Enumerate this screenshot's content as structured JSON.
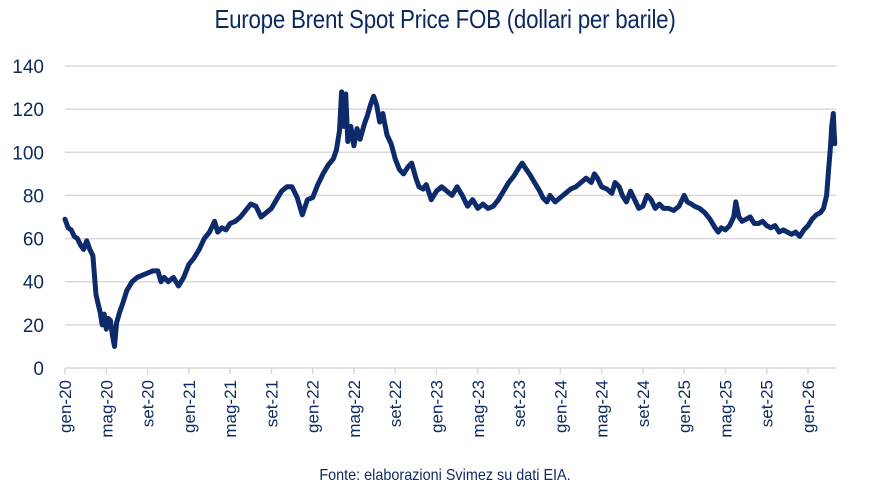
{
  "chart_data": {
    "type": "line",
    "title": "Europe Brent Spot Price FOB (dollari per barile)",
    "source": "Fonte: elaborazioni Svimez su dati EIA.",
    "xlabel": "",
    "ylabel": "",
    "ylim": [
      0,
      140
    ],
    "yticks": [
      0,
      20,
      40,
      60,
      80,
      100,
      120,
      140
    ],
    "grid": true,
    "legend": "none",
    "line_color": "#0d2a6b",
    "x_unit": "months since gen-20",
    "xlim": [
      0,
      75
    ],
    "xtick_positions": [
      0,
      4,
      8,
      12,
      16,
      20,
      24,
      28,
      32,
      36,
      40,
      44,
      48,
      52,
      56,
      60,
      64,
      68,
      72
    ],
    "xtick_labels": [
      "gen-20",
      "mag-20",
      "set-20",
      "gen-21",
      "mag-21",
      "set-21",
      "gen-22",
      "mag-22",
      "set-22",
      "gen-23",
      "mag-23",
      "set-23",
      "gen-24",
      "mag-24",
      "set-24",
      "gen-25",
      "mag-25",
      "set-25",
      "gen-26"
    ],
    "series": [
      {
        "name": "Europe Brent Spot Price FOB",
        "points": [
          [
            0,
            69
          ],
          [
            0.3,
            65
          ],
          [
            0.6,
            64
          ],
          [
            0.9,
            61
          ],
          [
            1.2,
            60
          ],
          [
            1.5,
            57
          ],
          [
            1.8,
            55
          ],
          [
            2.1,
            59
          ],
          [
            2.4,
            55
          ],
          [
            2.7,
            52
          ],
          [
            3.0,
            34
          ],
          [
            3.2,
            30
          ],
          [
            3.4,
            26
          ],
          [
            3.6,
            20
          ],
          [
            3.8,
            25
          ],
          [
            4.0,
            18
          ],
          [
            4.2,
            23
          ],
          [
            4.4,
            22
          ],
          [
            4.6,
            15
          ],
          [
            4.8,
            10
          ],
          [
            5.0,
            21
          ],
          [
            5.3,
            26
          ],
          [
            5.6,
            30
          ],
          [
            6.0,
            36
          ],
          [
            6.5,
            40
          ],
          [
            7.0,
            42
          ],
          [
            7.5,
            43
          ],
          [
            8.0,
            44
          ],
          [
            8.5,
            45
          ],
          [
            9.0,
            45
          ],
          [
            9.3,
            40
          ],
          [
            9.6,
            42
          ],
          [
            10.0,
            40
          ],
          [
            10.5,
            42
          ],
          [
            11.0,
            38
          ],
          [
            11.5,
            42
          ],
          [
            12.0,
            48
          ],
          [
            12.5,
            51
          ],
          [
            13.0,
            55
          ],
          [
            13.5,
            60
          ],
          [
            14.0,
            63
          ],
          [
            14.5,
            68
          ],
          [
            14.8,
            63
          ],
          [
            15.2,
            65
          ],
          [
            15.6,
            64
          ],
          [
            16.0,
            67
          ],
          [
            16.5,
            68
          ],
          [
            17.0,
            70
          ],
          [
            17.5,
            73
          ],
          [
            18.0,
            76
          ],
          [
            18.5,
            75
          ],
          [
            19.0,
            70
          ],
          [
            19.5,
            72
          ],
          [
            20.0,
            74
          ],
          [
            20.5,
            78
          ],
          [
            21.0,
            82
          ],
          [
            21.5,
            84
          ],
          [
            22.0,
            84
          ],
          [
            22.5,
            79
          ],
          [
            23.0,
            71
          ],
          [
            23.5,
            78
          ],
          [
            24.0,
            79
          ],
          [
            24.5,
            85
          ],
          [
            25.0,
            90
          ],
          [
            25.5,
            94
          ],
          [
            26.0,
            97
          ],
          [
            26.3,
            101
          ],
          [
            26.6,
            110
          ],
          [
            26.8,
            128
          ],
          [
            27.0,
            112
          ],
          [
            27.2,
            127
          ],
          [
            27.4,
            105
          ],
          [
            27.7,
            112
          ],
          [
            28.0,
            103
          ],
          [
            28.3,
            111
          ],
          [
            28.6,
            106
          ],
          [
            29.0,
            113
          ],
          [
            29.3,
            117
          ],
          [
            29.6,
            122
          ],
          [
            29.9,
            126
          ],
          [
            30.2,
            122
          ],
          [
            30.5,
            114
          ],
          [
            30.8,
            118
          ],
          [
            31.2,
            108
          ],
          [
            31.6,
            104
          ],
          [
            32.0,
            97
          ],
          [
            32.4,
            92
          ],
          [
            32.8,
            90
          ],
          [
            33.2,
            93
          ],
          [
            33.6,
            95
          ],
          [
            34.0,
            88
          ],
          [
            34.3,
            84
          ],
          [
            34.7,
            83
          ],
          [
            35.0,
            85
          ],
          [
            35.5,
            78
          ],
          [
            36.0,
            82
          ],
          [
            36.5,
            84
          ],
          [
            37.0,
            82
          ],
          [
            37.5,
            80
          ],
          [
            38.0,
            84
          ],
          [
            38.5,
            80
          ],
          [
            39.0,
            75
          ],
          [
            39.5,
            78
          ],
          [
            40.0,
            74
          ],
          [
            40.5,
            76
          ],
          [
            41.0,
            74
          ],
          [
            41.5,
            75
          ],
          [
            42.0,
            78
          ],
          [
            42.5,
            82
          ],
          [
            43.0,
            86
          ],
          [
            43.5,
            89
          ],
          [
            44.0,
            93
          ],
          [
            44.3,
            95
          ],
          [
            44.7,
            92
          ],
          [
            45.0,
            90
          ],
          [
            45.5,
            86
          ],
          [
            46.0,
            82
          ],
          [
            46.3,
            79
          ],
          [
            46.7,
            77
          ],
          [
            47.0,
            80
          ],
          [
            47.5,
            77
          ],
          [
            48.0,
            79
          ],
          [
            48.5,
            81
          ],
          [
            49.0,
            83
          ],
          [
            49.5,
            84
          ],
          [
            50.0,
            86
          ],
          [
            50.5,
            88
          ],
          [
            51.0,
            86
          ],
          [
            51.3,
            90
          ],
          [
            51.6,
            88
          ],
          [
            52.0,
            84
          ],
          [
            52.5,
            83
          ],
          [
            53.0,
            81
          ],
          [
            53.3,
            86
          ],
          [
            53.7,
            84
          ],
          [
            54.0,
            80
          ],
          [
            54.4,
            77
          ],
          [
            54.8,
            82
          ],
          [
            55.2,
            78
          ],
          [
            55.6,
            74
          ],
          [
            56.0,
            75
          ],
          [
            56.4,
            80
          ],
          [
            56.8,
            78
          ],
          [
            57.2,
            74
          ],
          [
            57.6,
            76
          ],
          [
            58.0,
            74
          ],
          [
            58.5,
            74
          ],
          [
            59.0,
            73
          ],
          [
            59.5,
            75
          ],
          [
            60.0,
            80
          ],
          [
            60.3,
            77
          ],
          [
            60.7,
            76
          ],
          [
            61.0,
            75
          ],
          [
            61.5,
            74
          ],
          [
            62.0,
            72
          ],
          [
            62.5,
            69
          ],
          [
            63.0,
            65
          ],
          [
            63.3,
            63
          ],
          [
            63.6,
            65
          ],
          [
            64.0,
            64
          ],
          [
            64.4,
            66
          ],
          [
            64.8,
            70
          ],
          [
            65.0,
            77
          ],
          [
            65.3,
            70
          ],
          [
            65.6,
            68
          ],
          [
            66.0,
            69
          ],
          [
            66.4,
            70
          ],
          [
            66.8,
            67
          ],
          [
            67.2,
            67
          ],
          [
            67.6,
            68
          ],
          [
            68.0,
            66
          ],
          [
            68.4,
            65
          ],
          [
            68.8,
            66
          ],
          [
            69.2,
            63
          ],
          [
            69.6,
            64
          ],
          [
            70.0,
            63
          ],
          [
            70.4,
            62
          ],
          [
            70.8,
            63
          ],
          [
            71.2,
            61
          ],
          [
            71.6,
            64
          ],
          [
            72.0,
            66
          ],
          [
            72.4,
            69
          ],
          [
            72.8,
            71
          ],
          [
            73.2,
            72
          ],
          [
            73.5,
            74
          ],
          [
            73.8,
            80
          ],
          [
            74.0,
            92
          ],
          [
            74.1,
            98
          ],
          [
            74.2,
            104
          ],
          [
            74.3,
            112
          ],
          [
            74.45,
            118
          ],
          [
            74.55,
            108
          ],
          [
            74.6,
            104
          ]
        ]
      }
    ]
  }
}
